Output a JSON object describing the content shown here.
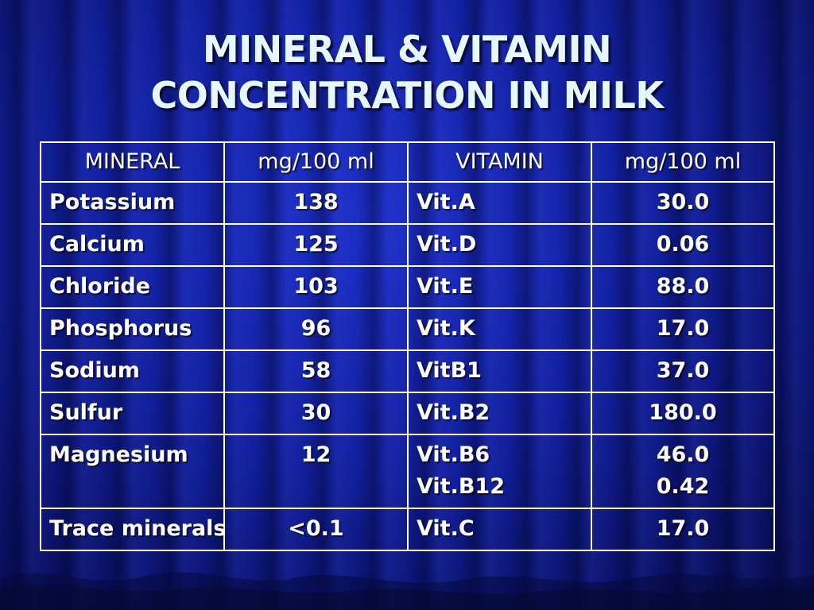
{
  "title": {
    "line1": "MINERAL & VITAMIN",
    "line2": "CONCENTRATION IN MILK"
  },
  "table": {
    "headers": [
      "MINERAL",
      "mg/100 ml",
      "VITAMIN",
      "mg/100 ml"
    ],
    "rows": [
      {
        "mineral": "Potassium",
        "mineral_value": "138",
        "vitamins": [
          "Vit.A"
        ],
        "vitamin_values": [
          "30.0"
        ]
      },
      {
        "mineral": "Calcium",
        "mineral_value": "125",
        "vitamins": [
          "Vit.D"
        ],
        "vitamin_values": [
          "0.06"
        ]
      },
      {
        "mineral": "Chloride",
        "mineral_value": "103",
        "vitamins": [
          "Vit.E"
        ],
        "vitamin_values": [
          "88.0"
        ]
      },
      {
        "mineral": "Phosphorus",
        "mineral_value": "96",
        "vitamins": [
          "Vit.K"
        ],
        "vitamin_values": [
          "17.0"
        ]
      },
      {
        "mineral": "Sodium",
        "mineral_value": "58",
        "vitamins": [
          "VitB1"
        ],
        "vitamin_values": [
          "37.0"
        ]
      },
      {
        "mineral": "Sulfur",
        "mineral_value": "30",
        "vitamins": [
          "Vit.B2"
        ],
        "vitamin_values": [
          "180.0"
        ]
      },
      {
        "mineral": "Magnesium",
        "mineral_value": "12",
        "vitamins": [
          "Vit.B6",
          "Vit.B12"
        ],
        "vitamin_values": [
          "46.0",
          "0.42"
        ]
      },
      {
        "mineral": "Trace minerals",
        "mineral_value": "<0.1",
        "vitamins": [
          "Vit.C"
        ],
        "vitamin_values": [
          "17.0"
        ]
      }
    ]
  },
  "colors": {
    "background": "#12209e",
    "title_text": "#e6f7ff",
    "table_text": "#ffffff",
    "grid": "#ffffff"
  }
}
